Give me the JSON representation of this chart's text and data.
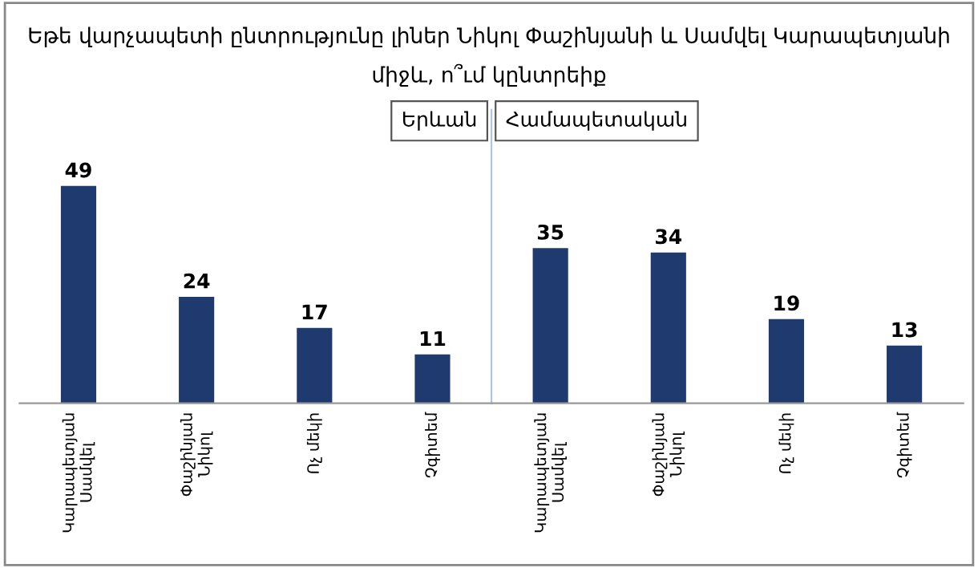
{
  "chart_data": [
    {
      "type": "bar",
      "title": "Եթե վարչապետի ընտրությունը լիներ Նիկոլ Փաշինյանի և Սամվել Կարապետյանի միջև, ո՞ւմ կընտրեիք",
      "subtitle": "Երևան",
      "categories": [
        "Կարապետյան\nՍամվել",
        "Փաշինյան\nՆիկոլ",
        "Ոչ մեկի",
        "Չգիտեմ"
      ],
      "values": [
        49,
        24,
        17,
        11
      ],
      "color": "#1f3a6e",
      "data_labels": true,
      "grid": false,
      "legend": false
    },
    {
      "type": "bar",
      "subtitle": "Համապետական",
      "categories": [
        "Կարապետյան\nՍամվել",
        "Փաշինյան\nՆիկոլ",
        "Ոչ մեկի",
        "Չգիտեմ"
      ],
      "values": [
        35,
        34,
        19,
        13
      ],
      "color": "#1f3a6e",
      "data_labels": true,
      "grid": false,
      "legend": false
    }
  ]
}
